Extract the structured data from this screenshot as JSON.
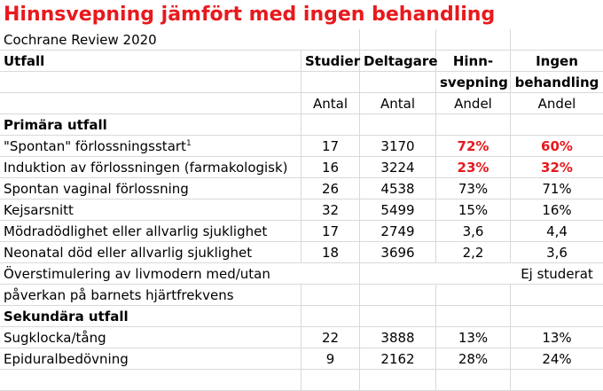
{
  "title": "Hinnsvepning jämfört med ingen behandling",
  "subtitle": "Cochrane Review 2020",
  "headers": {
    "outcome": "Utfall",
    "studies": "Studier",
    "participants": "Deltagare",
    "sweep_line1": "Hinn-",
    "sweep_line2": "svepning",
    "none_line1": "Ingen",
    "none_line2": "behandling"
  },
  "units": {
    "studies": "Antal",
    "participants": "Antal",
    "sweep": "Andel",
    "none": "Andel"
  },
  "sections": {
    "primary": "Primära utfall",
    "secondary": "Sekundära utfall"
  },
  "rows": [
    {
      "label": "\"Spontan\" förlossningsstart",
      "sup": "1",
      "studies": "17",
      "participants": "3170",
      "sweep": "72%",
      "none": "60%",
      "highlight": true
    },
    {
      "label": "Induktion av förlossningen (farmakologisk)",
      "studies": "16",
      "participants": "3224",
      "sweep": "23%",
      "none": "32%",
      "highlight": true
    },
    {
      "label": "Spontan vaginal förlossning",
      "studies": "26",
      "participants": "4538",
      "sweep": "73%",
      "none": "71%"
    },
    {
      "label": "Kejsarsnitt",
      "studies": "32",
      "participants": "5499",
      "sweep": "15%",
      "none": "16%"
    },
    {
      "label": "Mödradödlighet eller allvarlig sjuklighet",
      "studies": "17",
      "participants": "2749",
      "sweep": "3,6",
      "none": "4,4"
    },
    {
      "label": "Neonatal död eller allvarlig sjuklighet",
      "studies": "18",
      "participants": "3696",
      "sweep": "2,2",
      "none": "3,6"
    }
  ],
  "overstim": {
    "line1": "Överstimulering av livmodern med/utan",
    "line2": "påverkan på barnets hjärtfrekvens",
    "status": "Ej studerat"
  },
  "secondary_rows": [
    {
      "label": "Sugklocka/tång",
      "studies": "22",
      "participants": "3888",
      "sweep": "13%",
      "none": "13%"
    },
    {
      "label": "Epiduralbedövning",
      "studies": "9",
      "participants": "2162",
      "sweep": "28%",
      "none": "24%"
    }
  ]
}
